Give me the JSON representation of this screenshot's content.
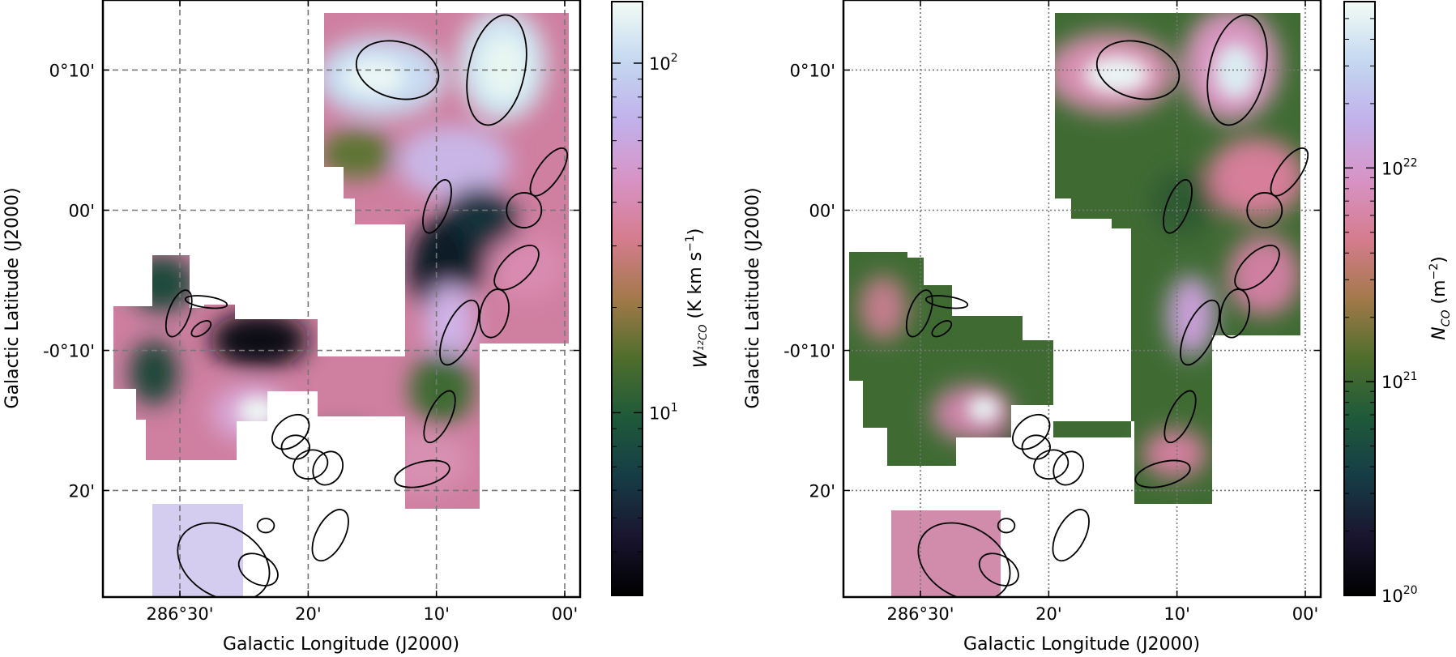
{
  "chart_data": [
    {
      "type": "heatmap",
      "quantity": "W_{12CO}",
      "xlabel": "Galactic Longitude (J2000)",
      "ylabel": "Galactic Latitude (J2000)",
      "xticks": [
        "286°30'",
        "20'",
        "10'",
        "00'"
      ],
      "yticks": [
        "0°10'",
        "00'",
        "-0°10'",
        "20'"
      ],
      "xtick_deg": [
        286.5,
        286.3333,
        286.1667,
        286.0
      ],
      "ytick_deg": [
        0.1667,
        0.0,
        -0.1667,
        -0.3333
      ],
      "xlim_deg": [
        286.6,
        285.98
      ],
      "ylim_deg": [
        0.25,
        -0.46
      ],
      "grid": true,
      "colormap": "cubehelix",
      "colorbar": {
        "label_main": "W",
        "label_sub": "12",
        "label_sub2": "CO",
        "label_units": " (K km s",
        "label_exp": "−1",
        "label_close": ")",
        "scale": "log",
        "range": [
          3,
          150
        ],
        "ticks": [
          "10",
          "10"
        ],
        "tick_exp": [
          "1",
          "2"
        ],
        "tick_values": [
          10,
          100
        ]
      },
      "ellipses": [
        {
          "l": 286.2173,
          "b": 0.1667,
          "a": 0.0545,
          "b_axis": 0.0364,
          "angle": -15
        },
        {
          "l": 286.0884,
          "b": 0.1667,
          "a": 0.0727,
          "b_axis": 0.0364,
          "angle": 78
        },
        {
          "l": 286.0207,
          "b": 0.0455,
          "a": 0.0364,
          "b_axis": 0.0145,
          "angle": 55
        },
        {
          "l": 286.0529,
          "b": 0.0,
          "a": 0.0227,
          "b_axis": 0.0227,
          "angle": 0
        },
        {
          "l": 286.1658,
          "b": 0.0045,
          "a": 0.0364,
          "b_axis": 0.0145,
          "angle": 70
        },
        {
          "l": 286.0626,
          "b": -0.0682,
          "a": 0.0364,
          "b_axis": 0.0182,
          "angle": 45
        },
        {
          "l": 286.0916,
          "b": -0.1227,
          "a": 0.0318,
          "b_axis": 0.0182,
          "angle": 78
        },
        {
          "l": 286.1368,
          "b": -0.1455,
          "a": 0.0455,
          "b_axis": 0.0182,
          "angle": 65
        },
        {
          "l": 286.1626,
          "b": -0.2455,
          "a": 0.0364,
          "b_axis": 0.0145,
          "angle": 65
        },
        {
          "l": 286.1852,
          "b": -0.3136,
          "a": 0.0364,
          "b_axis": 0.0155,
          "angle": 14
        },
        {
          "l": 286.3045,
          "b": -0.3864,
          "a": 0.0364,
          "b_axis": 0.0182,
          "angle": 62
        },
        {
          "l": 286.4432,
          "b": -0.4182,
          "a": 0.0636,
          "b_axis": 0.0455,
          "angle": -30
        },
        {
          "l": 286.3981,
          "b": -0.4273,
          "a": 0.0273,
          "b_axis": 0.0182,
          "angle": -30
        },
        {
          "l": 286.3884,
          "b": -0.375,
          "a": 0.0109,
          "b_axis": 0.0091,
          "angle": 0
        },
        {
          "l": 286.3561,
          "b": -0.2636,
          "a": 0.0273,
          "b_axis": 0.0182,
          "angle": 40
        },
        {
          "l": 286.3497,
          "b": -0.2818,
          "a": 0.0182,
          "b_axis": 0.0155,
          "angle": 0
        },
        {
          "l": 286.3303,
          "b": -0.3023,
          "a": 0.0227,
          "b_axis": 0.0182,
          "angle": 20
        },
        {
          "l": 286.3077,
          "b": -0.3068,
          "a": 0.0227,
          "b_axis": 0.0182,
          "angle": 60
        },
        {
          "l": 286.5013,
          "b": -0.1227,
          "a": 0.0318,
          "b_axis": 0.0136,
          "angle": 70
        },
        {
          "l": 286.4658,
          "b": -0.1091,
          "a": 0.0273,
          "b_axis": 0.0073,
          "angle": -8
        },
        {
          "l": 286.4723,
          "b": -0.1409,
          "a": 0.0145,
          "b_axis": 0.0073,
          "angle": 35
        }
      ]
    },
    {
      "type": "heatmap",
      "quantity": "N_CO",
      "xlabel": "Galactic Longitude (J2000)",
      "ylabel": "Galactic Latitude (J2000)",
      "xticks": [
        "286°30'",
        "20'",
        "10'",
        "00'"
      ],
      "yticks": [
        "0°10'",
        "00'",
        "-0°10'",
        "20'"
      ],
      "xtick_deg": [
        286.5,
        286.3333,
        286.1667,
        286.0
      ],
      "ytick_deg": [
        0.1667,
        0.0,
        -0.1667,
        -0.3333
      ],
      "xlim_deg": [
        286.6,
        285.98
      ],
      "ylim_deg": [
        0.25,
        -0.46
      ],
      "grid": true,
      "colormap": "cubehelix",
      "colorbar": {
        "label_main": "N",
        "label_sub": "CO",
        "label_units": " (m",
        "label_exp": "−2",
        "label_close": ")",
        "scale": "log",
        "range": [
          1e+20,
          6e+22
        ],
        "ticks": [
          "10",
          "10",
          "10"
        ],
        "tick_exp": [
          "20",
          "21",
          "22"
        ],
        "tick_values": [
          1e+20,
          1e+21,
          1e+22
        ]
      }
    }
  ]
}
